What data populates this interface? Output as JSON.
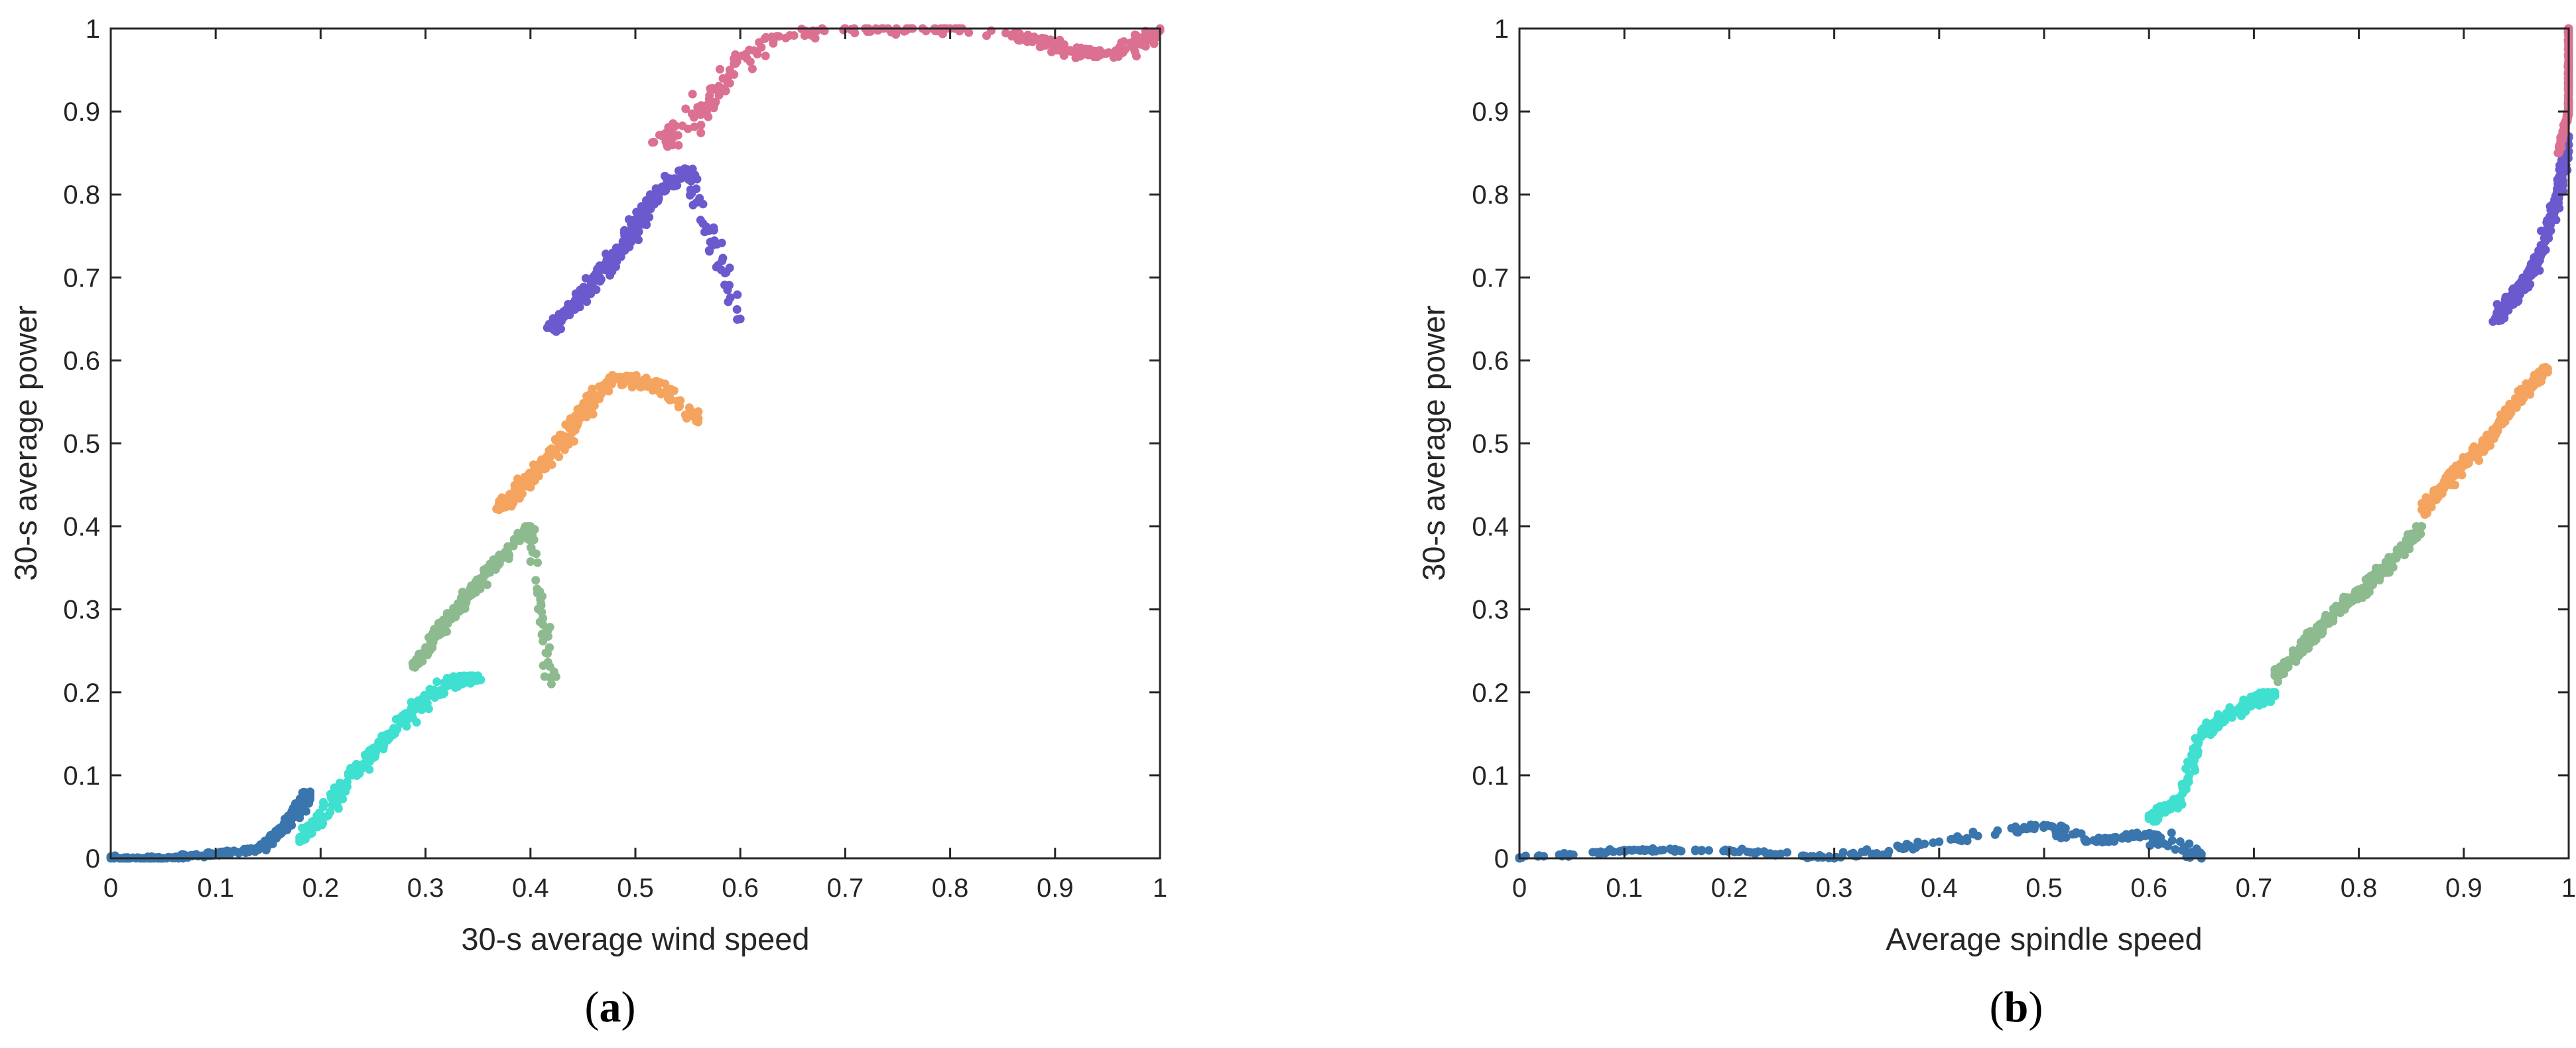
{
  "colors": {
    "cluster_1": "#3a76ad",
    "cluster_2": "#3fe0d0",
    "cluster_3": "#8dbb8f",
    "cluster_4": "#f5a460",
    "cluster_5": "#6a5acd",
    "cluster_6": "#dc7090",
    "axis": "#262626"
  },
  "chart_data": [
    {
      "type": "scatter",
      "panel_label": "a",
      "xlabel": "30-s average wind speed",
      "ylabel": "30-s average power",
      "xlim": [
        0,
        1
      ],
      "ylim": [
        0,
        1
      ],
      "xticks": [
        "0",
        "0.1",
        "0.2",
        "0.3",
        "0.4",
        "0.5",
        "0.6",
        "0.7",
        "0.8",
        "0.9",
        "1"
      ],
      "yticks": [
        "0",
        "0.1",
        "0.2",
        "0.3",
        "0.4",
        "0.5",
        "0.6",
        "0.7",
        "0.8",
        "0.9",
        "1"
      ],
      "grid": false,
      "legend": "none",
      "series": [
        {
          "color_key": "cluster_1",
          "x_range": [
            0.0,
            0.19
          ],
          "y_range": [
            0.0,
            0.08
          ],
          "description_points": [
            [
              0.0,
              0.0
            ],
            [
              0.05,
              0.0
            ],
            [
              0.1,
              0.005
            ],
            [
              0.14,
              0.01
            ],
            [
              0.16,
              0.03
            ],
            [
              0.18,
              0.06
            ],
            [
              0.19,
              0.08
            ]
          ]
        },
        {
          "color_key": "cluster_2",
          "x_range": [
            0.18,
            0.36
          ],
          "y_range": [
            0.0,
            0.22
          ],
          "description_points": [
            [
              0.18,
              0.02
            ],
            [
              0.2,
              0.05
            ],
            [
              0.23,
              0.1
            ],
            [
              0.26,
              0.14
            ],
            [
              0.29,
              0.18
            ],
            [
              0.32,
              0.21
            ],
            [
              0.35,
              0.22
            ]
          ]
        },
        {
          "color_key": "cluster_3",
          "x_range": [
            0.28,
            0.43
          ],
          "y_range": [
            0.21,
            0.4
          ],
          "description_points": [
            [
              0.29,
              0.23
            ],
            [
              0.31,
              0.27
            ],
            [
              0.33,
              0.3
            ],
            [
              0.35,
              0.33
            ],
            [
              0.37,
              0.36
            ],
            [
              0.4,
              0.4
            ],
            [
              0.42,
              0.21
            ]
          ]
        },
        {
          "color_key": "cluster_4",
          "x_range": [
            0.33,
            0.56
          ],
          "y_range": [
            0.38,
            0.6
          ],
          "description_points": [
            [
              0.37,
              0.42
            ],
            [
              0.4,
              0.46
            ],
            [
              0.43,
              0.5
            ],
            [
              0.45,
              0.54
            ],
            [
              0.48,
              0.58
            ],
            [
              0.52,
              0.57
            ],
            [
              0.56,
              0.53
            ]
          ]
        },
        {
          "color_key": "cluster_5",
          "x_range": [
            0.39,
            0.61
          ],
          "y_range": [
            0.6,
            0.85
          ],
          "description_points": [
            [
              0.42,
              0.64
            ],
            [
              0.45,
              0.68
            ],
            [
              0.48,
              0.72
            ],
            [
              0.5,
              0.76
            ],
            [
              0.52,
              0.8
            ],
            [
              0.55,
              0.83
            ],
            [
              0.6,
              0.65
            ]
          ]
        },
        {
          "color_key": "cluster_6",
          "x_range": [
            0.5,
            1.0
          ],
          "y_range": [
            0.82,
            1.0
          ],
          "description_points": [
            [
              0.53,
              0.86
            ],
            [
              0.56,
              0.9
            ],
            [
              0.59,
              0.95
            ],
            [
              0.63,
              0.99
            ],
            [
              0.7,
              1.0
            ],
            [
              0.8,
              1.0
            ],
            [
              0.88,
              0.99
            ],
            [
              0.92,
              0.97
            ],
            [
              0.96,
              0.97
            ],
            [
              1.0,
              1.0
            ]
          ]
        }
      ]
    },
    {
      "type": "scatter",
      "panel_label": "b",
      "xlabel": "Average spindle speed",
      "ylabel": "30-s average power",
      "xlim": [
        0,
        1
      ],
      "ylim": [
        0,
        1
      ],
      "xticks": [
        "0",
        "0.1",
        "0.2",
        "0.3",
        "0.4",
        "0.5",
        "0.6",
        "0.7",
        "0.8",
        "0.9",
        "1"
      ],
      "yticks": [
        "0",
        "0.1",
        "0.2",
        "0.3",
        "0.4",
        "0.5",
        "0.6",
        "0.7",
        "0.8",
        "0.9",
        "1"
      ],
      "grid": false,
      "legend": "none",
      "series": [
        {
          "color_key": "cluster_1",
          "x_range": [
            0.0,
            0.65
          ],
          "y_range": [
            0.0,
            0.05
          ],
          "description_points": [
            [
              0.0,
              0.0
            ],
            [
              0.1,
              0.01
            ],
            [
              0.2,
              0.01
            ],
            [
              0.3,
              0.0
            ],
            [
              0.4,
              0.02
            ],
            [
              0.5,
              0.04
            ],
            [
              0.55,
              0.02
            ],
            [
              0.6,
              0.03
            ],
            [
              0.65,
              0.0
            ]
          ]
        },
        {
          "color_key": "cluster_2",
          "x_range": [
            0.6,
            0.72
          ],
          "y_range": [
            0.0,
            0.2
          ],
          "description_points": [
            [
              0.6,
              0.05
            ],
            [
              0.63,
              0.07
            ],
            [
              0.65,
              0.15
            ],
            [
              0.67,
              0.17
            ],
            [
              0.7,
              0.19
            ],
            [
              0.72,
              0.2
            ]
          ]
        },
        {
          "color_key": "cluster_3",
          "x_range": [
            0.72,
            0.86
          ],
          "y_range": [
            0.2,
            0.4
          ],
          "description_points": [
            [
              0.72,
              0.22
            ],
            [
              0.75,
              0.26
            ],
            [
              0.78,
              0.3
            ],
            [
              0.81,
              0.33
            ],
            [
              0.84,
              0.37
            ],
            [
              0.86,
              0.4
            ]
          ]
        },
        {
          "color_key": "cluster_4",
          "x_range": [
            0.86,
            0.98
          ],
          "y_range": [
            0.38,
            0.6
          ],
          "description_points": [
            [
              0.86,
              0.42
            ],
            [
              0.89,
              0.46
            ],
            [
              0.92,
              0.5
            ],
            [
              0.95,
              0.55
            ],
            [
              0.98,
              0.59
            ]
          ]
        },
        {
          "color_key": "cluster_5",
          "x_range": [
            0.9,
            1.0
          ],
          "y_range": [
            0.57,
            0.87
          ],
          "description_points": [
            [
              0.93,
              0.65
            ],
            [
              0.95,
              0.68
            ],
            [
              0.97,
              0.72
            ],
            [
              0.99,
              0.8
            ],
            [
              1.0,
              0.87
            ]
          ]
        },
        {
          "color_key": "cluster_6",
          "x_range": [
            0.98,
            1.0
          ],
          "y_range": [
            0.85,
            1.0
          ],
          "description_points": [
            [
              0.99,
              0.85
            ],
            [
              1.0,
              0.9
            ],
            [
              1.0,
              0.95
            ],
            [
              1.0,
              1.0
            ]
          ]
        }
      ]
    }
  ]
}
